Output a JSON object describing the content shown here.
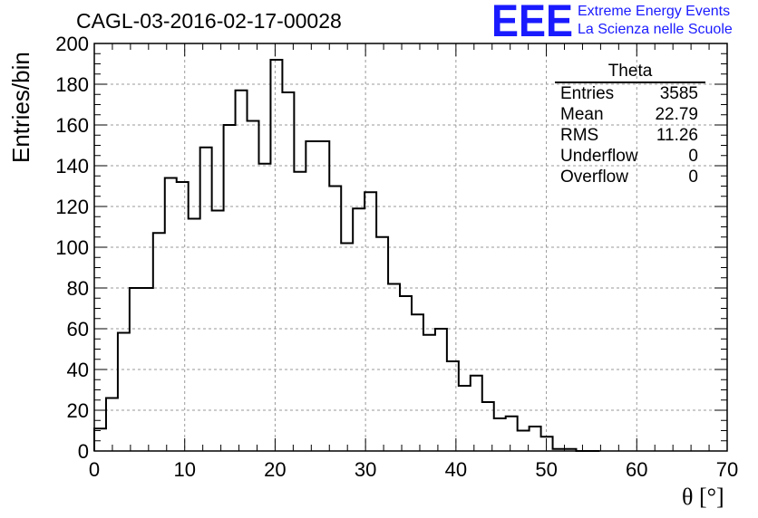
{
  "title": "CAGL-03-2016-02-17-00028",
  "logo": {
    "mark": "EEE",
    "line1": "Extreme Energy Events",
    "line2": "La Scienza nelle Scuole",
    "color": "#1a1aff"
  },
  "stats": {
    "name": "Theta",
    "rows": [
      {
        "label": "Entries",
        "value": "3585"
      },
      {
        "label": "Mean",
        "value": "22.79"
      },
      {
        "label": "RMS",
        "value": "11.26"
      },
      {
        "label": "Underflow",
        "value": "0"
      },
      {
        "label": "Overflow",
        "value": "0"
      }
    ]
  },
  "chart_data": {
    "type": "histogram",
    "title": "CAGL-03-2016-02-17-00028",
    "xlabel": "θ [°]",
    "ylabel": "Entries/bin",
    "xlim": [
      0,
      70
    ],
    "ylim": [
      0,
      200
    ],
    "x_ticks": [
      0,
      10,
      20,
      30,
      40,
      50,
      60,
      70
    ],
    "y_ticks": [
      0,
      20,
      40,
      60,
      80,
      100,
      120,
      140,
      160,
      180,
      200
    ],
    "grid": true,
    "bin_width": 1.3,
    "bin_start": 0,
    "values": [
      11,
      26,
      58,
      80,
      80,
      107,
      134,
      132,
      114,
      149,
      118,
      160,
      177,
      162,
      141,
      192,
      176,
      137,
      152,
      152,
      130,
      102,
      119,
      127,
      105,
      82,
      76,
      67,
      57,
      60,
      44,
      32,
      37,
      24,
      16,
      17,
      10,
      12,
      7,
      1,
      1,
      0,
      0
    ]
  }
}
